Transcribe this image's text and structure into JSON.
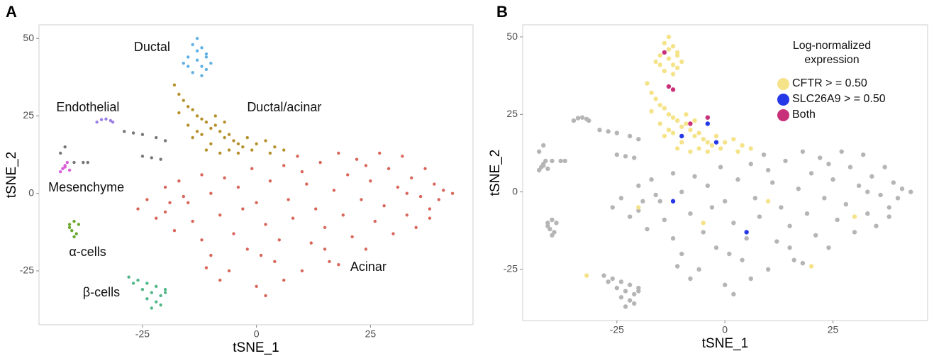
{
  "chart_data": [
    {
      "type": "scatter",
      "panel": "A",
      "xlabel": "tSNE_1",
      "ylabel": "tSNE_2",
      "xlim": [
        -47.7,
        47.5
      ],
      "ylim": [
        -42.4,
        54.4
      ],
      "xticks": [
        -25,
        0,
        25
      ],
      "yticks": [
        -25,
        0,
        25,
        50
      ],
      "series": [
        {
          "name": "Ductal",
          "color": "#61b1e3",
          "x": [
            -14,
            -13,
            -12,
            -11,
            -15,
            -16,
            -13,
            -12,
            -11,
            -10,
            -14,
            -15,
            -12,
            -13,
            -11
          ],
          "y": [
            48,
            50,
            47,
            45,
            44,
            42,
            43,
            41,
            40,
            42,
            39,
            41,
            38,
            46,
            44
          ]
        },
        {
          "name": "Ductal/acinar",
          "color": "#b5902b",
          "x": [
            -18,
            -17,
            -16,
            -15,
            -17,
            -14,
            -13,
            -12,
            -15,
            -11,
            -10,
            -9,
            -12,
            -8,
            -7,
            -6,
            -10,
            -5,
            -4,
            -3,
            -6,
            -2,
            -1,
            0,
            2,
            4,
            -14,
            -11,
            -8,
            -4,
            -13,
            -9,
            -7,
            3,
            6
          ],
          "y": [
            35,
            32,
            30,
            28,
            26,
            27,
            25,
            24,
            22,
            23,
            21,
            22,
            19,
            20,
            18,
            19,
            16,
            17,
            16,
            15,
            14,
            18,
            14,
            16,
            17,
            15,
            18,
            14,
            13,
            13,
            20,
            25,
            23,
            13,
            14
          ]
        },
        {
          "name": "Endothelial",
          "color": "#9b7fe6",
          "x": [
            -35,
            -34,
            -33,
            -32,
            -31.5
          ],
          "y": [
            23,
            23.8,
            24,
            23.5,
            23
          ]
        },
        {
          "name": "Mesenchyme",
          "color": "#d85fd8",
          "x": [
            -43,
            -42.5,
            -42,
            -41.5,
            -42,
            -41
          ],
          "y": [
            7,
            8,
            9,
            10,
            8.5,
            7.5
          ]
        },
        {
          "color": "#777777",
          "x": [
            -29,
            -27,
            -25,
            -22,
            -20,
            -25,
            -23,
            -21,
            -43,
            -42,
            -40,
            -38,
            -37
          ],
          "y": [
            20,
            19.5,
            19,
            18,
            17,
            12,
            11.5,
            11,
            13,
            15,
            10,
            10,
            10
          ]
        },
        {
          "name": "α-cells",
          "color": "#6aa82e",
          "x": [
            -41,
            -40,
            -39,
            -40.5,
            -39.5,
            -40,
            -41
          ],
          "y": [
            -10,
            -9,
            -10,
            -12,
            -13,
            -14,
            -11
          ]
        },
        {
          "name": "β-cells",
          "color": "#52b788",
          "x": [
            -28,
            -26,
            -24,
            -22,
            -20,
            -25,
            -23,
            -21,
            -27,
            -24,
            -22,
            -20,
            -23,
            -21
          ],
          "y": [
            -27,
            -28,
            -29,
            -30,
            -31,
            -31,
            -32,
            -33,
            -29,
            -34,
            -35,
            -32,
            -37,
            -36
          ]
        },
        {
          "name": "Acinar",
          "color": "#d9665b",
          "x": [
            -26,
            -24,
            -22,
            -20,
            -20,
            -18,
            -17,
            -15,
            -14,
            -12,
            -12,
            -10,
            -10,
            -8,
            -7,
            -6,
            -5,
            -4,
            -2,
            -1,
            0,
            0,
            2,
            2,
            3,
            4,
            5,
            6,
            7,
            8,
            9,
            10,
            11,
            12,
            13,
            14,
            15,
            16,
            17,
            18,
            18,
            19,
            20,
            21,
            22,
            23,
            24,
            25,
            26,
            27,
            28,
            29,
            30,
            31,
            32,
            33,
            34,
            35,
            36,
            37,
            38,
            39,
            40,
            41,
            43,
            -16,
            -8,
            -3,
            6,
            10,
            -19,
            -11,
            1,
            15,
            24,
            33,
            38
          ],
          "y": [
            -5,
            -2,
            -8,
            2,
            -6,
            -12,
            4,
            -3,
            -9,
            6,
            -15,
            0,
            -20,
            -7,
            5,
            -25,
            -13,
            2,
            -18,
            8,
            -3,
            -30,
            -10,
            -33,
            4,
            -22,
            -15,
            9,
            -2,
            -8,
            12,
            -25,
            3,
            -16,
            -5,
            10,
            -11,
            -22,
            1,
            13,
            -23,
            -7,
            6,
            -14,
            11,
            -2,
            -18,
            4,
            -9,
            13,
            -4,
            8,
            -13,
            2,
            12,
            -7,
            5,
            -11,
            -1,
            8,
            -5,
            3,
            -2,
            1,
            0,
            -1,
            -28,
            -5,
            -28,
            7,
            -3,
            -24,
            -20,
            -18,
            9,
            0,
            -8
          ]
        }
      ]
    },
    {
      "type": "scatter",
      "panel": "B",
      "xlabel": "tSNE_1",
      "ylabel": "tSNE_2",
      "xlim": [
        -46.8,
        46.9
      ],
      "ylim": [
        -41.5,
        53.9
      ],
      "xticks": [
        -25,
        0,
        25
      ],
      "yticks": [
        -25,
        0,
        25,
        50
      ],
      "legend": "top-right",
      "legend_title": "Log-normalized expression",
      "series": [
        {
          "color": "#b5b5b5",
          "x": [
            -35,
            -34,
            -33,
            -32,
            -31.5,
            -29,
            -27,
            -25,
            -22,
            -20,
            -25,
            -23,
            -21,
            -43,
            -42,
            -40,
            -38,
            -37,
            -43,
            -42.5,
            -42,
            -41.5,
            -42,
            -41,
            -41,
            -40,
            -39,
            -40.5,
            -39.5,
            -40,
            -41,
            -28,
            -26,
            -24,
            -22,
            -20,
            -25,
            -23,
            -21,
            -27,
            -24,
            -22,
            -20,
            -23,
            -21,
            -26,
            -24,
            -22,
            -20,
            -20,
            -18,
            -17,
            -15,
            -14,
            -12,
            -12,
            -10,
            -10,
            -8,
            -7,
            -6,
            -5,
            -4,
            -2,
            -1,
            0,
            0,
            2,
            2,
            3,
            4,
            5,
            6,
            7,
            8,
            9,
            10,
            11,
            12,
            13,
            14,
            15,
            16,
            17,
            18,
            18,
            19,
            20,
            21,
            22,
            23,
            24,
            25,
            26,
            27,
            28,
            29,
            30,
            31,
            32,
            33,
            34,
            35,
            36,
            37,
            38,
            39,
            40,
            41,
            43,
            -16,
            -8,
            -3,
            6,
            10,
            -19,
            -11,
            1,
            15,
            24,
            33,
            38
          ],
          "y": [
            23,
            23.8,
            24,
            23.5,
            23,
            20,
            19.5,
            19,
            18,
            17,
            12,
            11.5,
            11,
            13,
            15,
            10,
            10,
            10,
            7,
            8,
            9,
            10,
            8.5,
            7.5,
            -10,
            -9,
            -10,
            -12,
            -13,
            -14,
            -11,
            -27,
            -28,
            -29,
            -30,
            -31,
            -31,
            -32,
            -33,
            -29,
            -34,
            -35,
            -32,
            -37,
            -36,
            -5,
            -2,
            -8,
            2,
            -6,
            -12,
            4,
            -3,
            -9,
            6,
            -15,
            0,
            -20,
            -7,
            5,
            -25,
            -13,
            2,
            -18,
            8,
            -3,
            -30,
            -10,
            -33,
            4,
            -22,
            -15,
            9,
            -2,
            -8,
            12,
            -25,
            3,
            -16,
            -5,
            10,
            -11,
            -22,
            1,
            13,
            -23,
            -7,
            6,
            -14,
            11,
            -2,
            -18,
            4,
            -9,
            13,
            -4,
            8,
            -13,
            2,
            12,
            -7,
            5,
            -11,
            -1,
            8,
            -5,
            3,
            -2,
            1,
            0,
            -1,
            -28,
            -5,
            -28,
            7,
            -3,
            -24,
            -20,
            -18,
            9,
            0,
            -8
          ]
        },
        {
          "name": "CFTR > = 0.50",
          "color": "#f5e38a",
          "x": [
            -14,
            -13,
            -12,
            -11,
            -15,
            -16,
            -13,
            -12,
            -11,
            -10,
            -14,
            -15,
            -12,
            -13,
            -11,
            -18,
            -17,
            -16,
            -15,
            -17,
            -14,
            -13,
            -12,
            -15,
            -11,
            -10,
            -9,
            -12,
            -8,
            -7,
            -6,
            -10,
            -5,
            -4,
            -3,
            -6,
            -2,
            -1,
            0,
            2,
            4,
            -14,
            -11,
            -8,
            -4,
            -13,
            -9,
            -7,
            3,
            6,
            -20,
            10,
            30,
            -5,
            -32,
            20
          ],
          "y": [
            48,
            50,
            47,
            45,
            44,
            42,
            43,
            41,
            40,
            42,
            39,
            41,
            38,
            46,
            44,
            35,
            32,
            30,
            28,
            26,
            27,
            25,
            24,
            22,
            23,
            21,
            22,
            19,
            20,
            18,
            19,
            16,
            17,
            16,
            15,
            14,
            18,
            14,
            16,
            17,
            15,
            18,
            14,
            13,
            13,
            20,
            25,
            23,
            13,
            14,
            -5,
            -3,
            -8,
            -10,
            -27,
            -24
          ]
        },
        {
          "name": "SLC26A9 > = 0.50",
          "color": "#2438e8",
          "x": [
            -4,
            -2,
            -12,
            5,
            -10
          ],
          "y": [
            22,
            16,
            -3,
            -13,
            18
          ]
        },
        {
          "name": "Both",
          "color": "#c8317a",
          "x": [
            -14,
            -12,
            -13,
            -8,
            -4
          ],
          "y": [
            45,
            33,
            34,
            22,
            24
          ]
        }
      ]
    }
  ]
}
